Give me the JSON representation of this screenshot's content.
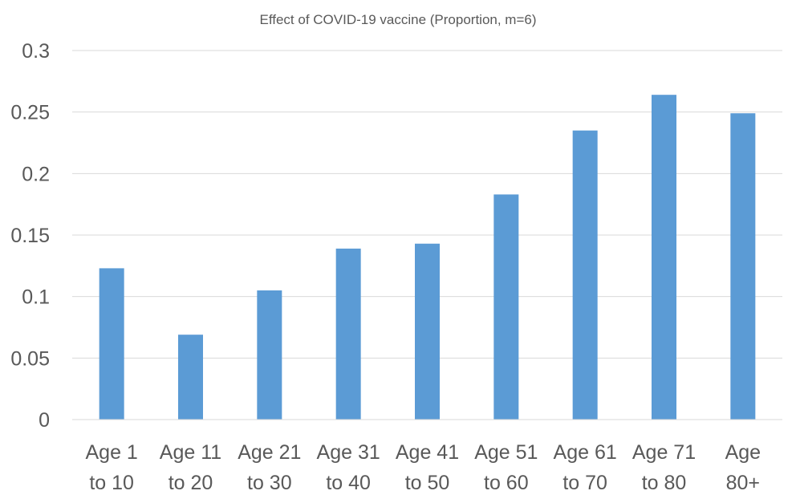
{
  "chart_data": {
    "type": "bar",
    "title": "Effect of COVID-19 vaccine (Proportion, m=6)",
    "xlabel": "",
    "ylabel": "",
    "ylim": [
      0,
      0.3
    ],
    "yticks": [
      0,
      0.05,
      0.1,
      0.15,
      0.2,
      0.25,
      0.3
    ],
    "ytick_labels": [
      "0",
      "0.05",
      "0.1",
      "0.15",
      "0.2",
      "0.25",
      "0.3"
    ],
    "grid": true,
    "legend": "none",
    "categories": [
      [
        "Age 1",
        "to 10"
      ],
      [
        "Age 11",
        "to 20"
      ],
      [
        "Age 21",
        "to 30"
      ],
      [
        "Age 31",
        "to 40"
      ],
      [
        "Age 41",
        "to 50"
      ],
      [
        "Age 51",
        "to 60"
      ],
      [
        "Age 61",
        "to 70"
      ],
      [
        "Age 71",
        "to 80"
      ],
      [
        "Age",
        "80+"
      ]
    ],
    "values": [
      0.123,
      0.069,
      0.105,
      0.139,
      0.143,
      0.183,
      0.235,
      0.264,
      0.249
    ],
    "bar_color": "#5b9bd5"
  }
}
